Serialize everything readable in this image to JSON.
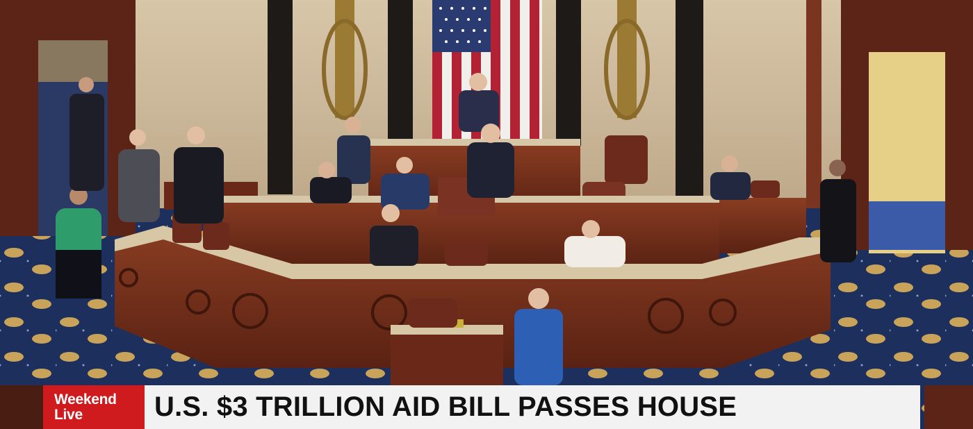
{
  "lower_third": {
    "badge_line1": "Weekend",
    "badge_line2": "Live",
    "headline": "U.S. $3 TRILLION AID BILL PASSES HOUSE",
    "badge_color": "#d01b1e",
    "headline_bg": "#f2f2f2",
    "headline_color": "#111111"
  },
  "scene": {
    "description_icons": [
      "american-flag-icon",
      "fasces-icon"
    ],
    "carpet_color": "#1d2f5c",
    "wood_color": "#6e2b1a",
    "marble_color": "#cdb99a"
  }
}
